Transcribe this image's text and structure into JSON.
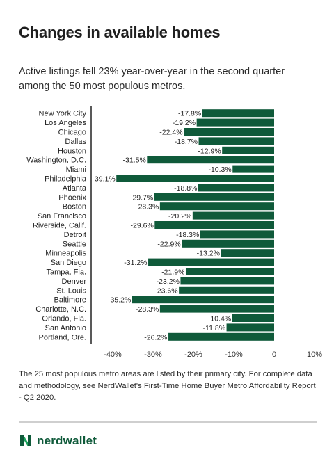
{
  "title": "Changes in available homes",
  "subtitle": "Active listings fell 23% year-over-year in the second quarter among the 50 most populous metros.",
  "footnote": "The 25 most populous metro areas are listed by their primary city. For complete data and methodology, see NerdWallet's First-Time Home Buyer Metro Affordability Report - Q2 2020.",
  "brand": {
    "name": "nerdwallet",
    "color": "#0f5a3a"
  },
  "chart_data": {
    "type": "bar",
    "orientation": "horizontal",
    "bar_color": "#0f5a3a",
    "categories": [
      "New York City",
      "Los Angeles",
      "Chicago",
      "Dallas",
      "Houston",
      "Washington, D.C.",
      "Miami",
      "Philadelphia",
      "Atlanta",
      "Phoenix",
      "Boston",
      "San Francisco",
      "Riverside, Calif.",
      "Detroit",
      "Seattle",
      "Minneapolis",
      "San Diego",
      "Tampa, Fla.",
      "Denver",
      "St. Louis",
      "Baltimore",
      "Charlotte, N.C.",
      "Orlando, Fla.",
      "San Antonio",
      "Portland, Ore."
    ],
    "values": [
      -17.8,
      -19.2,
      -22.4,
      -18.7,
      -12.9,
      -31.5,
      -10.3,
      -39.1,
      -18.8,
      -29.7,
      -28.3,
      -20.2,
      -29.6,
      -18.3,
      -22.9,
      -13.2,
      -31.2,
      -21.9,
      -23.2,
      -23.6,
      -35.2,
      -28.3,
      -10.4,
      -11.8,
      -26.2
    ],
    "data_labels": [
      "-17.8%",
      "-19.2%",
      "-22.4%",
      "-18.7%",
      "-12.9%",
      "-31.5%",
      "-10.3%",
      "-39.1%",
      "-18.8%",
      "-29.7%",
      "-28.3%",
      "-20.2%",
      "-29.6%",
      "-18.3%",
      "-22.9%",
      "-13.2%",
      "-31.2%",
      "-21.9%",
      "-23.2%",
      "-23.6%",
      "-35.2%",
      "-28.3%",
      "-10.4%",
      "-11.8%",
      "-26.2%"
    ],
    "xlim": [
      -45,
      10
    ],
    "xticks": [
      -40,
      -30,
      -20,
      -10,
      0,
      10
    ],
    "xtick_labels": [
      "-40%",
      "-30%",
      "-20%",
      "-10%",
      "0",
      "10%"
    ],
    "grid": false,
    "legend": "none"
  }
}
